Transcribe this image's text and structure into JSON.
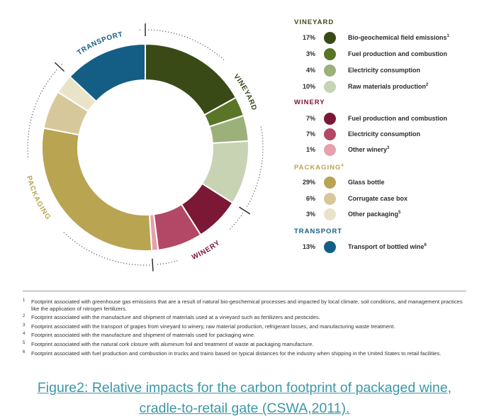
{
  "chart_data": {
    "type": "pie",
    "variant": "donut",
    "groups": [
      {
        "name": "VINEYARD",
        "title_sup": "",
        "color": "#3a4a16",
        "items": [
          {
            "pct_label": "17%",
            "value": 17,
            "label": "Bio-geochemical field emissions",
            "sup": "1",
            "color": "#3a4a16"
          },
          {
            "pct_label": "3%",
            "value": 3,
            "label": "Fuel production and combustion",
            "sup": "",
            "color": "#5a7526"
          },
          {
            "pct_label": "4%",
            "value": 4,
            "label": "Electricity consumption",
            "sup": "",
            "color": "#9cb17a"
          },
          {
            "pct_label": "10%",
            "value": 10,
            "label": "Raw materials production",
            "sup": "2",
            "color": "#c8d3b4"
          }
        ]
      },
      {
        "name": "WINERY",
        "title_sup": "",
        "color": "#7a1836",
        "items": [
          {
            "pct_label": "7%",
            "value": 7,
            "label": "Fuel production and combustion",
            "sup": "",
            "color": "#7a1836"
          },
          {
            "pct_label": "7%",
            "value": 7,
            "label": "Electricity consumption",
            "sup": "",
            "color": "#b34866"
          },
          {
            "pct_label": "1%",
            "value": 1,
            "label": "Other winery",
            "sup": "3",
            "color": "#e6a1ac"
          }
        ]
      },
      {
        "name": "PACKAGING",
        "title_sup": "4",
        "color": "#b9a452",
        "items": [
          {
            "pct_label": "29%",
            "value": 29,
            "label": "Glass bottle",
            "sup": "",
            "color": "#b9a452"
          },
          {
            "pct_label": "6%",
            "value": 6,
            "label": "Corrugate case box",
            "sup": "",
            "color": "#d7c89b"
          },
          {
            "pct_label": "3%",
            "value": 3,
            "label": "Other packaging",
            "sup": "5",
            "color": "#e9e3c8"
          }
        ]
      },
      {
        "name": "TRANSPORT",
        "title_sup": "",
        "color": "#145e86",
        "items": [
          {
            "pct_label": "13%",
            "value": 13,
            "label": "Transport of bottled wine",
            "sup": "6",
            "color": "#145e86"
          }
        ]
      }
    ],
    "ring_labels": [
      "VINEYARD",
      "WINERY",
      "PACKAGING",
      "TRANSPORT"
    ],
    "legend_position": "right"
  },
  "footnotes": [
    {
      "num": "1",
      "text": "Footprint associated with greenhouse gas emissions that are a result of natural bio-geochemical processes and impacted by local climate, soil conditions, and management practices like the application of nitrogen fertilizers."
    },
    {
      "num": "2",
      "text": "Footprint associated with the manufacture and shipment of materials used at a vineyard such as fertilizers and pesticides."
    },
    {
      "num": "3",
      "text": "Footprint associated with the transport of grapes from vineyard to winery, raw material production, refrigerant losses, and manufacturing waste treatment."
    },
    {
      "num": "4",
      "text": "Footprint associated with the manufacture and shipment of materials used for packaging wine."
    },
    {
      "num": "5",
      "text": "Footprint associated with the natural cork closure with aluminum foil and treatment of waste at packaging manufacture."
    },
    {
      "num": "6",
      "text": "Footprint associated with fuel production and combustion in trucks and trains based on typical distances for the industry when shipping in the United States to retail facilities."
    }
  ],
  "caption": {
    "line1": "Figure2: Relative impacts for the carbon footprint of packaged wine,",
    "line2": "cradle-to-retail gate (CSWA,2011)."
  }
}
